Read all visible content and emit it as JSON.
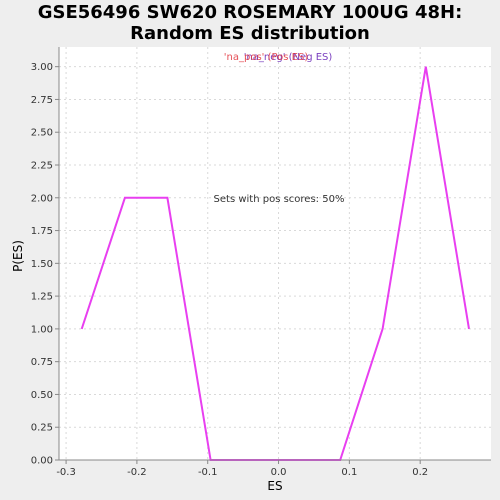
{
  "title_lines": [
    "GSE56496 SW620 ROSEMARY 100UG 48H:",
    "Random ES distribution"
  ],
  "legend": {
    "entry1": "'na_neg' (Neg ES)",
    "entry2": "'na_pos' (Pos ES)",
    "entry1_color": "#7a3fbf",
    "entry2_color": "#e0313b"
  },
  "annotation": "Sets with pos scores: 50%",
  "chart_data": {
    "type": "line",
    "xlabel": "ES",
    "ylabel": "P(ES)",
    "xlim": [
      -0.31,
      0.3
    ],
    "ylim": [
      0,
      3.15
    ],
    "xticks": [
      -0.3,
      -0.2,
      -0.1,
      0.0,
      0.1,
      0.2
    ],
    "xtick_labels": [
      "-0.3",
      "-0.2",
      "-0.1",
      "0.0",
      "0.1",
      "0.2"
    ],
    "yticks": [
      0,
      0.25,
      0.5,
      0.75,
      1.0,
      1.25,
      1.5,
      1.75,
      2.0,
      2.25,
      2.5,
      2.75,
      3.0
    ],
    "ytick_labels": [
      "0.00",
      "0.25",
      "0.50",
      "0.75",
      "1.00",
      "1.25",
      "1.50",
      "1.75",
      "2.00",
      "2.25",
      "2.50",
      "2.75",
      "3.00"
    ],
    "grid": true,
    "series": [
      {
        "color": "#e83ff0",
        "x": [
          -0.278,
          -0.217,
          -0.157,
          -0.096,
          -0.035,
          0.026,
          0.087,
          0.147,
          0.208,
          0.269
        ],
        "y": [
          1.0,
          2.0,
          2.0,
          0.0,
          0.0,
          0.0,
          0.0,
          1.0,
          3.0,
          1.0
        ]
      }
    ]
  }
}
